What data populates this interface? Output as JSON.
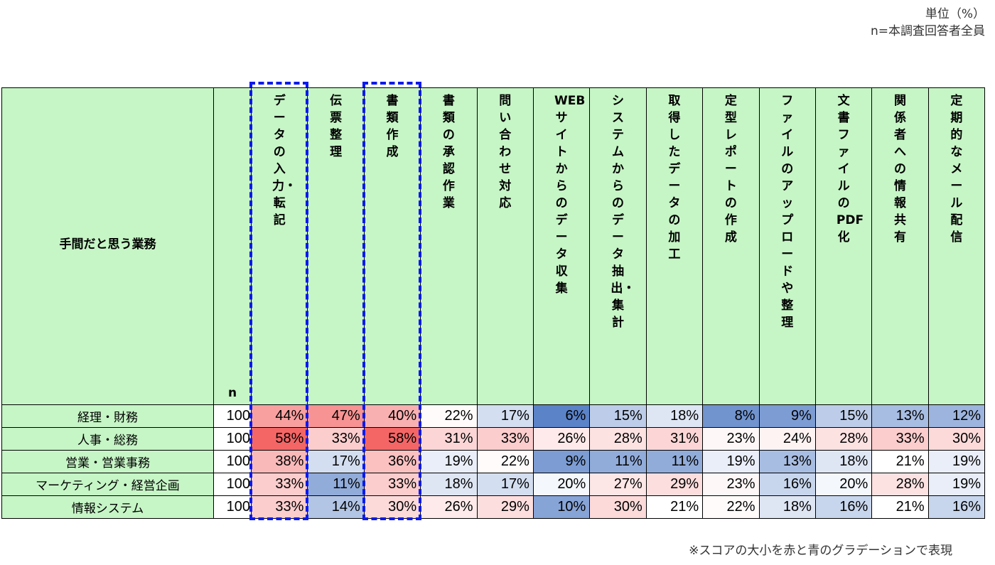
{
  "unit_note": [
    "単位（%）",
    "n=本調査回答者全員"
  ],
  "footnote": "※スコアの大小を赤と青のグラデーションで表現",
  "chart_data": {
    "type": "heatmap",
    "row_header": "手間だと思う業務",
    "n_label": "n",
    "columns": [
      "データの入力・転記",
      "伝票整理",
      "書類作成",
      "書類の承認作業",
      "問い合わせ対応",
      "WEBサイトからのデータ収集",
      "システムからのデータ抽出・集計",
      "取得したデータの加工",
      "定型レポートの作成",
      "ファイルのアップロードや整理",
      "文書ファイルのPDF化",
      "関係者への情報共有",
      "定期的なメール配信"
    ],
    "rows": [
      {
        "label": "経理・財務",
        "n": 100,
        "values": [
          44,
          47,
          40,
          22,
          17,
          6,
          15,
          18,
          8,
          9,
          15,
          13,
          12
        ]
      },
      {
        "label": "人事・総務",
        "n": 100,
        "values": [
          58,
          33,
          58,
          31,
          33,
          26,
          28,
          31,
          23,
          24,
          28,
          33,
          30
        ]
      },
      {
        "label": "営業・営業事務",
        "n": 100,
        "values": [
          38,
          17,
          36,
          19,
          22,
          9,
          11,
          11,
          19,
          13,
          18,
          21,
          19
        ]
      },
      {
        "label": "マーケティング・経営企画",
        "n": 100,
        "values": [
          33,
          11,
          33,
          18,
          17,
          20,
          27,
          29,
          23,
          16,
          20,
          28,
          19
        ]
      },
      {
        "label": "情報システム",
        "n": 100,
        "values": [
          33,
          14,
          30,
          26,
          29,
          10,
          30,
          21,
          22,
          18,
          16,
          21,
          16
        ]
      }
    ],
    "value_suffix": "%",
    "highlighted_columns": [
      0,
      2
    ],
    "color_scale": {
      "low": "#5b83c8",
      "mid": "#ffffff",
      "high": "#f46666"
    }
  }
}
